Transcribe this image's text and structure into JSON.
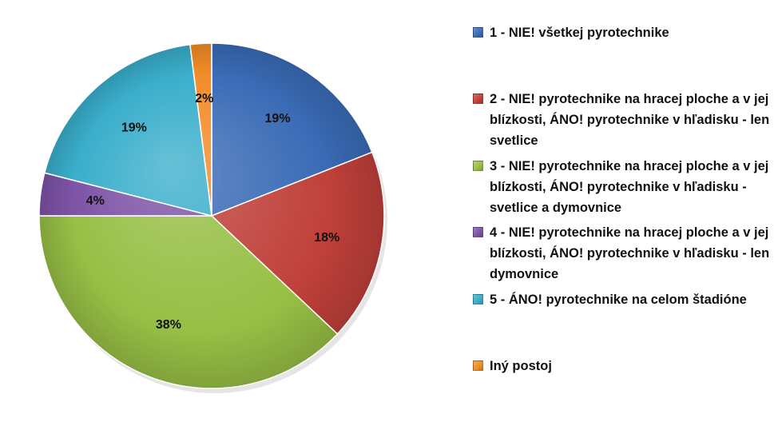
{
  "chart_data": {
    "type": "pie",
    "start_angle_deg": 0,
    "direction": "clockwise",
    "label_format": "{v}%",
    "legend_position": "right",
    "slices": [
      {
        "label": "1 - NIE! všetkej pyrotechnike",
        "value": 19,
        "color": "#3A6BB6"
      },
      {
        "label": "2 - NIE! pyrotechnike na hracej ploche a v jej blízkosti, ÁNO! pyrotechnike v hľadisku - len svetlice",
        "value": 18,
        "color": "#C0403A"
      },
      {
        "label": "3 - NIE! pyrotechnike na hracej ploche a v jej blízkosti, ÁNO! pyrotechnike v hľadisku - svetlice a dymovnice",
        "value": 38,
        "color": "#97BF45"
      },
      {
        "label": "4 - NIE! pyrotechnike na hracej ploche a v jej blízkosti, ÁNO! pyrotechnike v hľadisku - len dymovnice",
        "value": 4,
        "color": "#7D53A6"
      },
      {
        "label": "5 - ÁNO! pyrotechnike na celom štadióne",
        "value": 19,
        "color": "#3AAECB"
      },
      {
        "label": "Iný postoj",
        "value": 2,
        "color": "#F28C28"
      }
    ]
  }
}
